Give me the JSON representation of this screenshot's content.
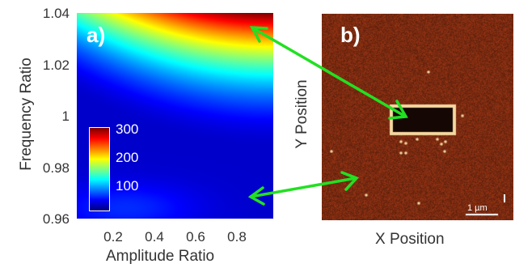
{
  "chart_data": [
    {
      "panel": "a)",
      "type": "heatmap",
      "xlabel": "Amplitude Ratio",
      "ylabel": "Frequency Ratio",
      "xlim": [
        0.05,
        1.0
      ],
      "ylim": [
        0.96,
        1.04
      ],
      "x_ticks": [
        "0.2",
        "0.4",
        "0.6",
        "0.8"
      ],
      "x_tick_values": [
        0.2,
        0.4,
        0.6,
        0.8
      ],
      "y_ticks": [
        "0.96",
        "0.98",
        "1",
        "1.02",
        "1.04"
      ],
      "y_tick_values": [
        0.96,
        0.98,
        1.0,
        1.02,
        1.04
      ],
      "colorbar": {
        "ticks": [
          "100",
          "200",
          "300"
        ],
        "tick_values": [
          100,
          200,
          300
        ],
        "range": [
          50,
          320
        ]
      },
      "colormap": "jet",
      "annotations": [
        {
          "type": "arrow",
          "from": "b)",
          "to": [
            0.85,
            1.035
          ]
        },
        {
          "type": "arrow",
          "from": "b)",
          "to": [
            0.85,
            0.968
          ]
        }
      ]
    },
    {
      "panel": "b)",
      "type": "image",
      "xlabel": "X Position",
      "ylabel": "Y Position",
      "scalebar": "1 µm"
    }
  ],
  "colors": {
    "arrow": "#22e022",
    "afm_bg": "#7a2a10",
    "afm_dark": "#150703",
    "afm_bright": "#f5d8a0"
  }
}
